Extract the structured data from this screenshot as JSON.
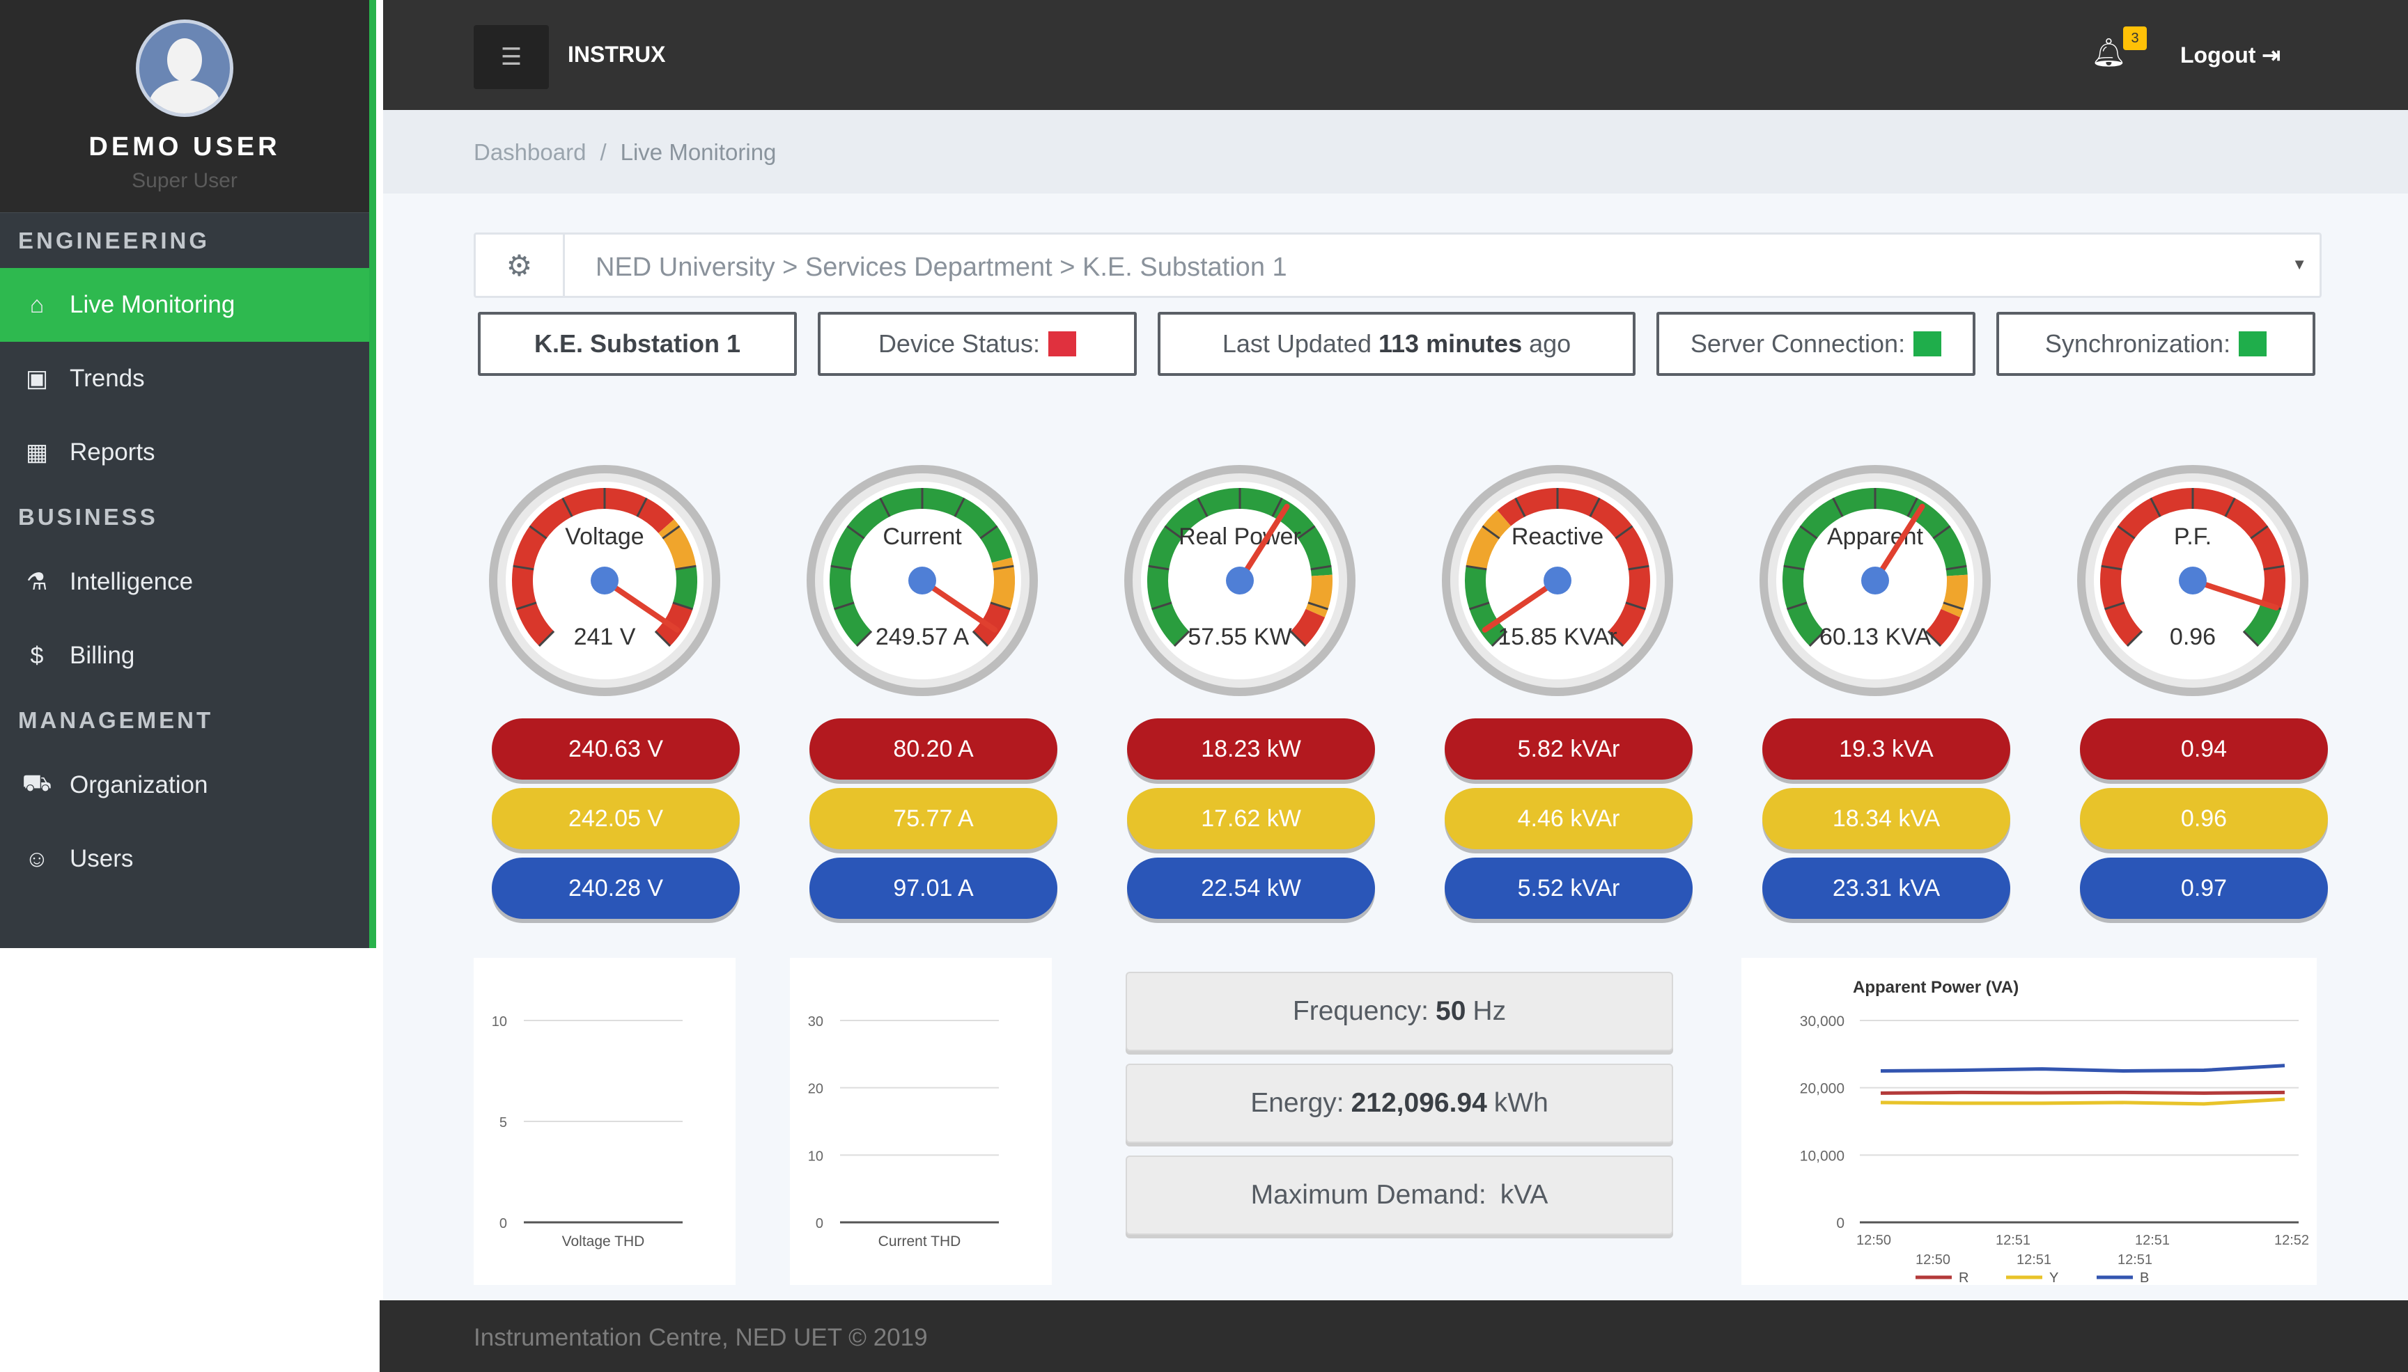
{
  "user": {
    "name": "DEMO USER",
    "role": "Super User"
  },
  "sidebar": {
    "sections": [
      {
        "title": "ENGINEERING",
        "items": [
          {
            "label": "Live Monitoring",
            "icon": "home-icon",
            "active": true
          },
          {
            "label": "Trends",
            "icon": "save-icon"
          },
          {
            "label": "Reports",
            "icon": "table-icon"
          }
        ]
      },
      {
        "title": "BUSINESS",
        "items": [
          {
            "label": "Intelligence",
            "icon": "flask-icon"
          },
          {
            "label": "Billing",
            "icon": "dollar-icon"
          }
        ]
      },
      {
        "title": "MANAGEMENT",
        "items": [
          {
            "label": "Organization",
            "icon": "truck-icon"
          },
          {
            "label": "Users",
            "icon": "user-icon"
          }
        ]
      }
    ]
  },
  "header": {
    "brand": "INSTRUX",
    "notifications": "3",
    "logout": "Logout"
  },
  "breadcrumb": {
    "home": "Dashboard",
    "separator": "/",
    "current": "Live Monitoring"
  },
  "location": {
    "path": "NED University > Services Department > K.E. Substation 1"
  },
  "status": {
    "station": "K.E. Substation 1",
    "device_label": "Device Status:",
    "device_color": "#e0313e",
    "last_updated_prefix": "Last Updated",
    "last_updated_value": "113 minutes",
    "last_updated_suffix": "ago",
    "server_label": "Server Connection:",
    "server_color": "#1fae4b",
    "sync_label": "Synchronization:",
    "sync_color": "#1fae4b"
  },
  "gauges": [
    {
      "label": "Voltage",
      "value": "241 V",
      "needle": 0.96,
      "style": "rg"
    },
    {
      "label": "Current",
      "value": "249.57 A",
      "needle": 0.96,
      "style": "gr"
    },
    {
      "label": "Real Power",
      "value": "57.55 KW",
      "needle": 0.62,
      "style": "g"
    },
    {
      "label": "Reactive",
      "value": "15.85 KVAr",
      "needle": 0.04,
      "style": "rr"
    },
    {
      "label": "Apparent",
      "value": "60.13 KVA",
      "needle": 0.62,
      "style": "g"
    },
    {
      "label": "P.F.",
      "value": "0.96",
      "needle": 0.9,
      "style": "pf"
    }
  ],
  "phases": [
    [
      "240.63 V",
      "242.05 V",
      "240.28 V"
    ],
    [
      "80.20 A",
      "75.77 A",
      "97.01 A"
    ],
    [
      "18.23 kW",
      "17.62 kW",
      "22.54 kW"
    ],
    [
      "5.82 kVAr",
      "4.46 kVAr",
      "5.52 kVAr"
    ],
    [
      "19.3 kVA",
      "18.34 kVA",
      "23.31 kVA"
    ],
    [
      "0.94",
      "0.96",
      "0.97"
    ]
  ],
  "info": {
    "frequency_label": "Frequency:",
    "frequency_value": "50",
    "frequency_unit": "Hz",
    "energy_label": "Energy:",
    "energy_value": "212,096.94",
    "energy_unit": "kWh",
    "demand_label": "Maximum Demand:",
    "demand_value": "",
    "demand_unit": "kVA"
  },
  "footer": {
    "text": "Instrumentation Centre, NED UET © 2019"
  },
  "chart_data": [
    {
      "type": "line",
      "xlabel": "Voltage THD",
      "ylim": [
        0,
        10
      ],
      "yticks": [
        "10",
        "5",
        "0"
      ],
      "series": []
    },
    {
      "type": "line",
      "xlabel": "Current THD",
      "ylim": [
        0,
        30
      ],
      "yticks": [
        "30",
        "20",
        "10",
        "0"
      ],
      "series": []
    },
    {
      "type": "line",
      "title": "Apparent Power (VA)",
      "ylim": [
        0,
        30000
      ],
      "yticks": [
        "30,000",
        "20,000",
        "10,000",
        "0"
      ],
      "xticks_top": [
        "12:50",
        "12:51",
        "12:51",
        "12:52"
      ],
      "xticks_bottom": [
        "12:50",
        "12:51",
        "12:51"
      ],
      "x": [
        0,
        1,
        2,
        3,
        4,
        5
      ],
      "series": [
        {
          "name": "R",
          "color": "#b33a3a",
          "values": [
            19200,
            19300,
            19250,
            19300,
            19200,
            19300
          ]
        },
        {
          "name": "Y",
          "color": "#e8c32a",
          "values": [
            17800,
            17700,
            17700,
            17800,
            17600,
            18300
          ]
        },
        {
          "name": "B",
          "color": "#3355b0",
          "values": [
            22500,
            22600,
            22800,
            22500,
            22600,
            23300
          ]
        }
      ]
    }
  ]
}
